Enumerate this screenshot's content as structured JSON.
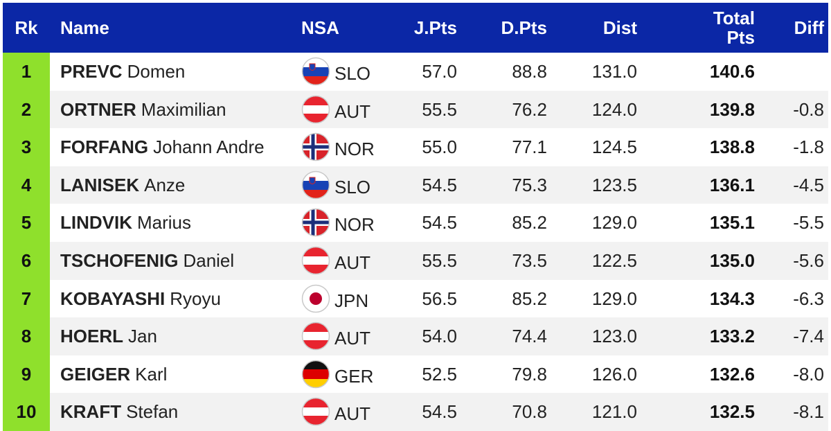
{
  "table": {
    "header": [
      "Rk",
      "Name",
      "NSA",
      "J.Pts",
      "D.Pts",
      "Dist",
      "Total Pts",
      "Diff"
    ],
    "rows": [
      {
        "rank": "1",
        "surname": "PREVC",
        "given": "Domen",
        "nsa": "SLO",
        "jpts": "57.0",
        "dpts": "88.8",
        "dist": "131.0",
        "total": "140.6"
      },
      {
        "rank": "2",
        "surname": "ORTNER",
        "given": "Maximilian",
        "nsa": "AUT",
        "jpts": "55.5",
        "dpts": "76.2",
        "dist": "124.0",
        "total": "139.8",
        "diff": "-0.8"
      },
      {
        "rank": "3",
        "surname": "FORFANG",
        "given": "Johann Andre",
        "nsa": "NOR",
        "jpts": "55.0",
        "dpts": "77.1",
        "dist": "124.5",
        "total": "138.8",
        "diff": "-1.8"
      },
      {
        "rank": "4",
        "surname": "LANISEK",
        "given": "Anze",
        "nsa": "SLO",
        "jpts": "54.5",
        "dpts": "75.3",
        "dist": "123.5",
        "total": "136.1",
        "diff": "-4.5"
      },
      {
        "rank": "5",
        "surname": "LINDVIK",
        "given": "Marius",
        "nsa": "NOR",
        "jpts": "54.5",
        "dpts": "85.2",
        "dist": "129.0",
        "total": "135.1",
        "diff": "-5.5"
      },
      {
        "rank": "6",
        "surname": "TSCHOFENIG",
        "given": "Daniel",
        "nsa": "AUT",
        "jpts": "55.5",
        "dpts": "73.5",
        "dist": "122.5",
        "total": "135.0",
        "diff": "-5.6"
      },
      {
        "rank": "7",
        "surname": "KOBAYASHI",
        "given": "Ryoyu",
        "nsa": "JPN",
        "jpts": "56.5",
        "dpts": "85.2",
        "dist": "129.0",
        "total": "134.3",
        "diff": "-6.3"
      },
      {
        "rank": "8",
        "surname": "HOERL",
        "given": "Jan",
        "nsa": "AUT",
        "jpts": "54.0",
        "dpts": "74.4",
        "dist": "123.0",
        "total": "133.2",
        "diff": "-7.4"
      },
      {
        "rank": "9",
        "surname": "GEIGER",
        "given": "Karl",
        "nsa": "GER",
        "jpts": "52.5",
        "dpts": "79.8",
        "dist": "126.0",
        "total": "132.6",
        "diff": "-8.0"
      },
      {
        "rank": "10",
        "surname": "KRAFT",
        "given": "Stefan",
        "nsa": "AUT",
        "jpts": "54.5",
        "dpts": "70.8",
        "dist": "121.0",
        "total": "132.5",
        "diff": "-8.1"
      }
    ]
  }
}
